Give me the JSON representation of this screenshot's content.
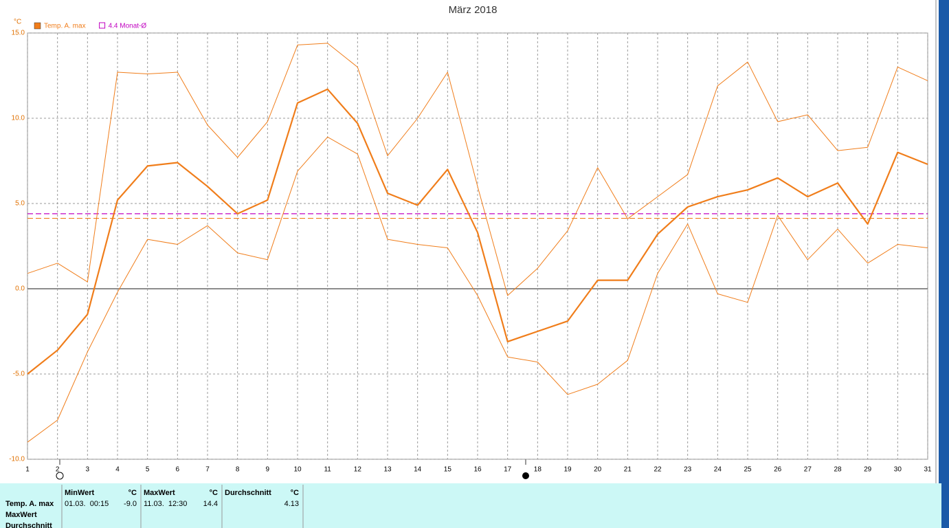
{
  "chart_data": {
    "type": "line",
    "title": "März 2018",
    "y_unit": "°C",
    "x": [
      1,
      2,
      3,
      4,
      5,
      6,
      7,
      8,
      9,
      10,
      11,
      12,
      13,
      14,
      15,
      16,
      17,
      18,
      19,
      20,
      21,
      22,
      23,
      24,
      25,
      26,
      27,
      28,
      29,
      30,
      31
    ],
    "xlim": [
      1,
      31
    ],
    "xticks": [
      1,
      2,
      3,
      4,
      5,
      6,
      7,
      8,
      9,
      10,
      11,
      12,
      13,
      14,
      15,
      16,
      17,
      18,
      19,
      20,
      21,
      22,
      23,
      24,
      25,
      26,
      27,
      28,
      29,
      30,
      31
    ],
    "ylim": [
      -10,
      15
    ],
    "yticks": [
      {
        "value": 15,
        "label": "15.0"
      },
      {
        "value": 10,
        "label": "10.0"
      },
      {
        "value": 5,
        "label": "5.0"
      },
      {
        "value": 0,
        "label": "0.0"
      },
      {
        "value": -5,
        "label": "-5.0"
      },
      {
        "value": -10,
        "label": "-10.0"
      }
    ],
    "grid": true,
    "series": [
      {
        "name": "Temp. A. max",
        "color": "#f07d1a",
        "width": 2.2,
        "values": [
          -5.0,
          -3.6,
          -1.5,
          5.2,
          7.2,
          7.4,
          6.0,
          4.4,
          5.2,
          10.9,
          11.7,
          9.7,
          5.6,
          4.9,
          7.0,
          3.3,
          -3.1,
          -2.5,
          -1.9,
          0.5,
          0.5,
          3.2,
          4.8,
          5.4,
          5.8,
          6.5,
          5.4,
          6.2,
          3.8,
          8.0,
          7.3
        ]
      },
      {
        "color": "#f07d1a",
        "width": 1,
        "values": [
          0.9,
          1.5,
          0.4,
          12.7,
          12.6,
          12.7,
          9.6,
          7.7,
          9.8,
          14.3,
          14.4,
          13.0,
          7.8,
          10.0,
          12.7,
          6.0,
          -0.4,
          1.2,
          3.4,
          7.1,
          4.1,
          5.4,
          6.7,
          11.9,
          13.3,
          9.8,
          10.2,
          8.1,
          8.3,
          13.0,
          12.2
        ]
      },
      {
        "color": "#f07d1a",
        "width": 1,
        "values": [
          -9.0,
          -7.7,
          -3.7,
          -0.2,
          2.9,
          2.6,
          3.7,
          2.1,
          1.7,
          6.9,
          8.9,
          7.9,
          2.9,
          2.6,
          2.4,
          -0.4,
          -4.0,
          -4.3,
          -6.2,
          -5.6,
          -4.2,
          0.9,
          3.8,
          -0.3,
          -0.8,
          4.3,
          1.7,
          3.5,
          1.5,
          2.6,
          2.4
        ]
      }
    ],
    "reference_lines": [
      {
        "name": "4.4 Monat-Ø",
        "value": 4.4,
        "color": "#c000c0"
      },
      {
        "value": 4.13,
        "color": "#f07d1a"
      }
    ]
  },
  "stats": {
    "row_labels": [
      "Temp. A. max",
      "MaxWert",
      "Durchschnitt"
    ],
    "columns": [
      {
        "header": "MinWert",
        "unit": "°C",
        "date": "01.03.  00:15",
        "value": "-9.0"
      },
      {
        "header": "MaxWert",
        "unit": "°C",
        "date": "11.03.  12:30",
        "value": "14.4"
      },
      {
        "header": "Durchschnitt",
        "unit": "°C",
        "value": "4.13"
      }
    ]
  }
}
